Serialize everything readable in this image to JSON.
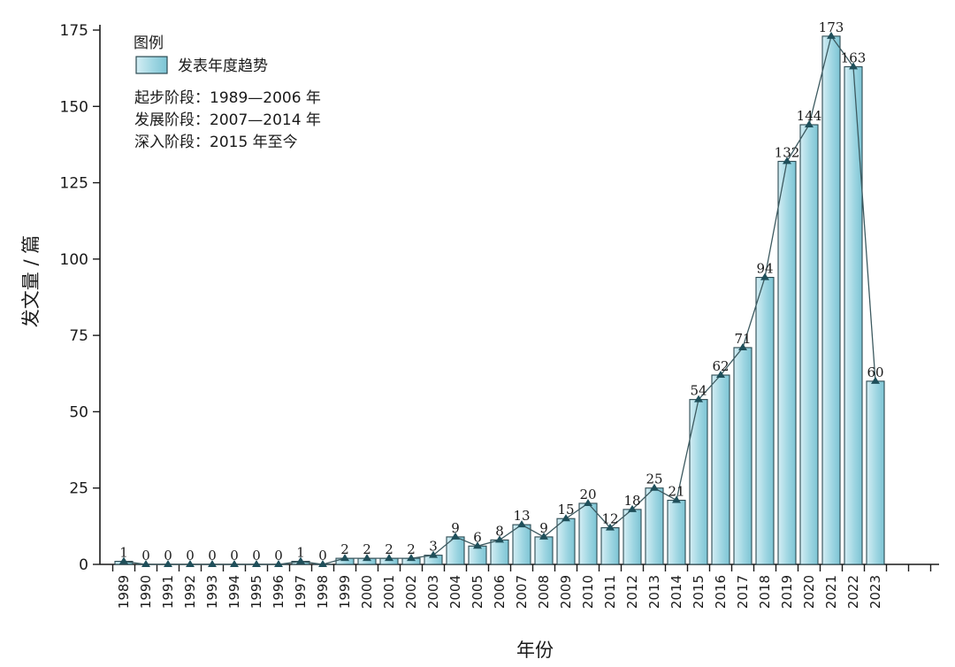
{
  "chart_data": {
    "type": "bar",
    "categories": [
      "1989",
      "1990",
      "1991",
      "1992",
      "1993",
      "1994",
      "1995",
      "1996",
      "1997",
      "1998",
      "1999",
      "2000",
      "2001",
      "2002",
      "2003",
      "2004",
      "2005",
      "2006",
      "2007",
      "2008",
      "2009",
      "2010",
      "2011",
      "2012",
      "2013",
      "2014",
      "2015",
      "2016",
      "2017",
      "2018",
      "2019",
      "2020",
      "2021",
      "2022",
      "2023"
    ],
    "values": [
      1,
      0,
      0,
      0,
      0,
      0,
      0,
      0,
      1,
      0,
      2,
      2,
      2,
      2,
      3,
      9,
      6,
      8,
      13,
      9,
      15,
      20,
      12,
      18,
      25,
      21,
      54,
      62,
      71,
      94,
      132,
      144,
      173,
      163,
      60
    ],
    "overlay": "line",
    "xlabel": "年份",
    "ylabel": "发文量 / 篇",
    "ylim": [
      0,
      175
    ],
    "yticks": [
      0,
      25,
      50,
      75,
      100,
      125,
      150,
      175
    ],
    "grid": false,
    "data_labels": true,
    "legend": {
      "position": "top-left",
      "title": "图例",
      "entries": [
        "发表年度趋势"
      ],
      "notes": [
        "起步阶段：1989—2006 年",
        "发展阶段：2007—2014 年",
        "深入阶段：2015 年至今"
      ]
    },
    "colors": {
      "bar_fill_light": "#d4eef4",
      "bar_fill_dark": "#7cc4d4",
      "bar_stroke": "#2c4a52",
      "line": "#3d5a60",
      "marker": "#1f4f5a"
    }
  }
}
